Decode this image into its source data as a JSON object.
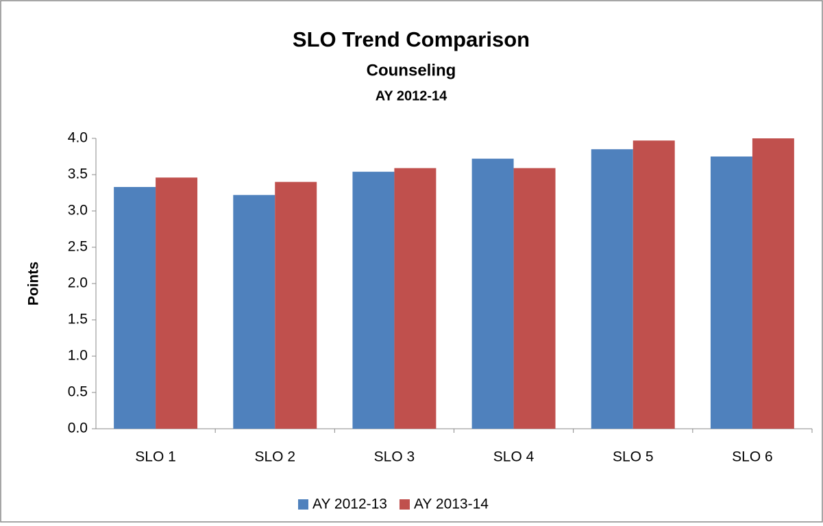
{
  "chart_data": {
    "type": "bar",
    "title": "SLO Trend Comparison",
    "subtitle": "Counseling",
    "subtitle2": "AY 2012-14",
    "y_label": "Points",
    "categories": [
      "SLO 1",
      "SLO 2",
      "SLO 3",
      "SLO 4",
      "SLO 5",
      "SLO 6"
    ],
    "series": [
      {
        "name": "AY 2012-13",
        "color": "#4f81bd",
        "values": [
          3.33,
          3.22,
          3.54,
          3.72,
          3.85,
          3.75
        ]
      },
      {
        "name": "AY 2013-14",
        "color": "#c0504d",
        "values": [
          3.46,
          3.4,
          3.59,
          3.59,
          3.97,
          4.0
        ]
      }
    ],
    "ylim": [
      0,
      4
    ],
    "yticks": [
      {
        "value": 0,
        "label": "0.0"
      },
      0.5,
      {
        "value": 1,
        "label": "1.0"
      },
      1.5,
      {
        "value": 2,
        "label": "2.0"
      },
      2.5,
      {
        "value": 3,
        "label": "3.0"
      },
      3.5,
      {
        "value": 4,
        "label": "4.0"
      }
    ],
    "legend": "bottom"
  }
}
